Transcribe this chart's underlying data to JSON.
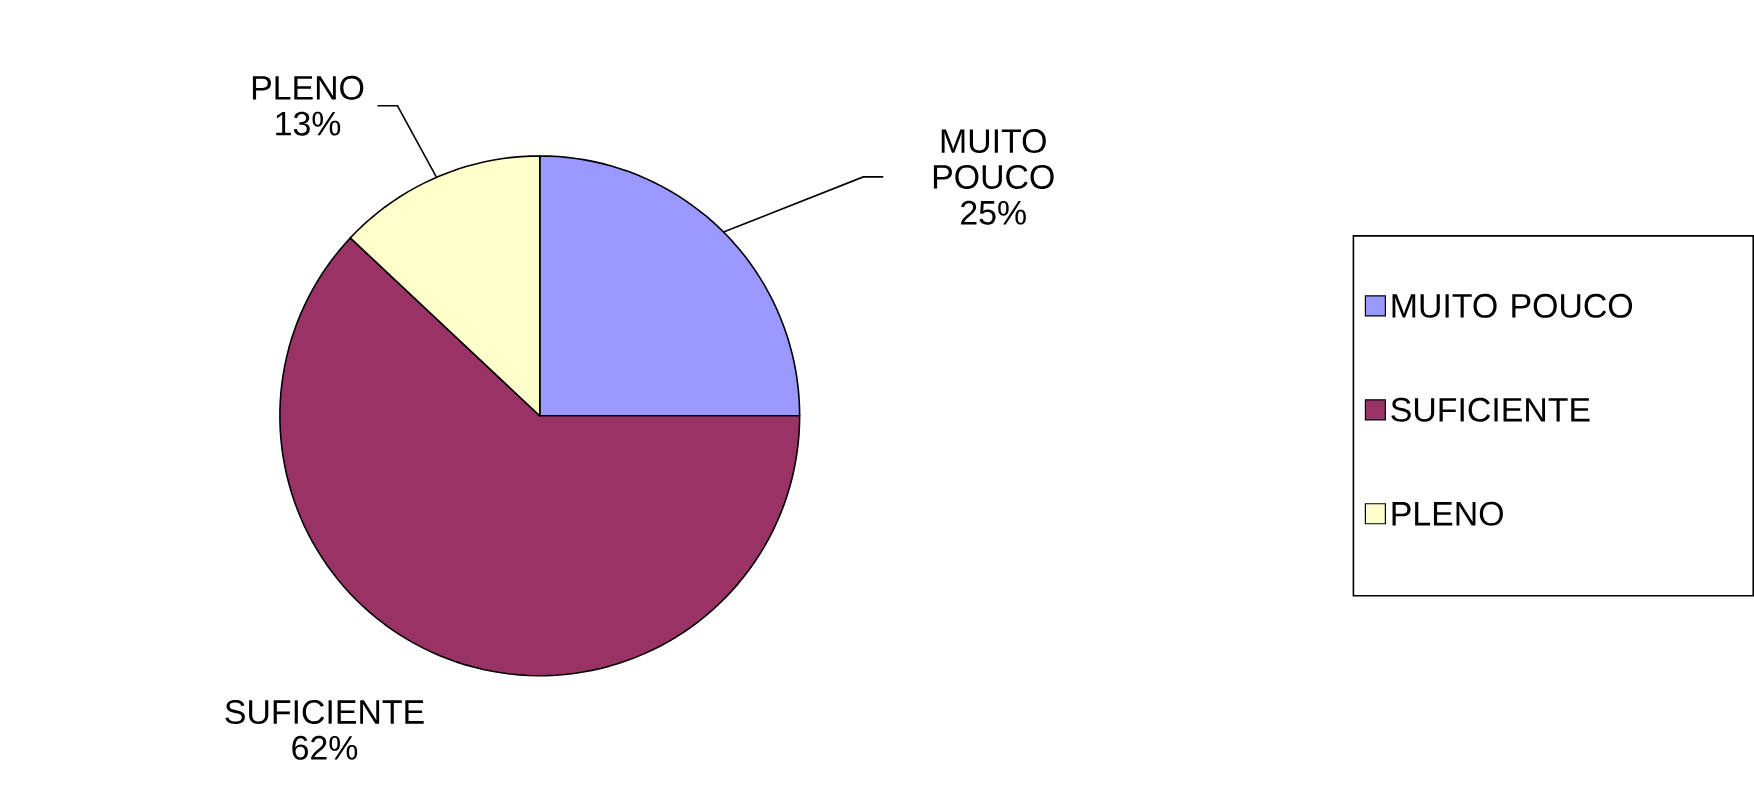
{
  "chart_data": {
    "type": "pie",
    "categories": [
      "MUITO POUCO",
      "SUFICIENTE",
      "PLENO"
    ],
    "values": [
      25,
      62,
      13
    ],
    "value_labels": [
      "25%",
      "62%",
      "13%"
    ],
    "colors": [
      "#9999ff",
      "#993366",
      "#ffffcc"
    ],
    "legend": "right"
  }
}
